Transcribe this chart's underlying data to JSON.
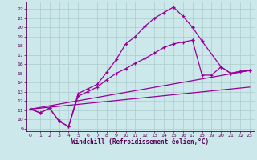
{
  "xlabel": "Windchill (Refroidissement éolien,°C)",
  "bg_color": "#cce8ea",
  "line_color": "#990099",
  "grid_color": "#aacccc",
  "text_color": "#550055",
  "xlim": [
    -0.5,
    23.5
  ],
  "ylim": [
    8.7,
    22.8
  ],
  "xticks": [
    0,
    1,
    2,
    3,
    4,
    5,
    6,
    7,
    8,
    9,
    10,
    11,
    12,
    13,
    14,
    15,
    16,
    17,
    18,
    19,
    20,
    21,
    22,
    23
  ],
  "yticks": [
    9,
    10,
    11,
    12,
    13,
    14,
    15,
    16,
    17,
    18,
    19,
    20,
    21,
    22
  ],
  "curve1_x": [
    0,
    1,
    2,
    3,
    4,
    5,
    6,
    7,
    8,
    9,
    10,
    11,
    12,
    13,
    14,
    15,
    16,
    17
  ],
  "curve1_y": [
    11.1,
    10.7,
    11.2,
    9.8,
    9.2,
    12.8,
    13.3,
    13.8,
    15.1,
    16.5,
    18.2,
    19.0,
    20.1,
    21.0,
    21.6,
    22.2,
    21.2,
    20.0
  ],
  "curve2_x": [
    0,
    1,
    2,
    3,
    4,
    5,
    6,
    7,
    8,
    9,
    10,
    11,
    12,
    13,
    14,
    15,
    16,
    17
  ],
  "curve2_y": [
    11.1,
    10.7,
    11.2,
    9.8,
    9.2,
    12.5,
    13.0,
    13.5,
    14.3,
    15.0,
    15.5,
    16.1,
    16.6,
    17.2,
    17.8,
    18.2,
    18.4,
    18.6
  ],
  "line1_x": [
    0,
    23
  ],
  "line1_y": [
    11.1,
    15.3
  ],
  "line2_x": [
    0,
    23
  ],
  "line2_y": [
    11.1,
    13.5
  ],
  "curve3_x": [
    17,
    18,
    19,
    20,
    21,
    22,
    23
  ],
  "curve3_y": [
    18.6,
    14.8,
    14.8,
    15.7,
    15.0,
    15.2,
    15.3
  ],
  "curve4_x": [
    17,
    18,
    20,
    21,
    22,
    23
  ],
  "curve4_y": [
    20.0,
    18.5,
    15.7,
    15.0,
    15.2,
    15.3
  ]
}
